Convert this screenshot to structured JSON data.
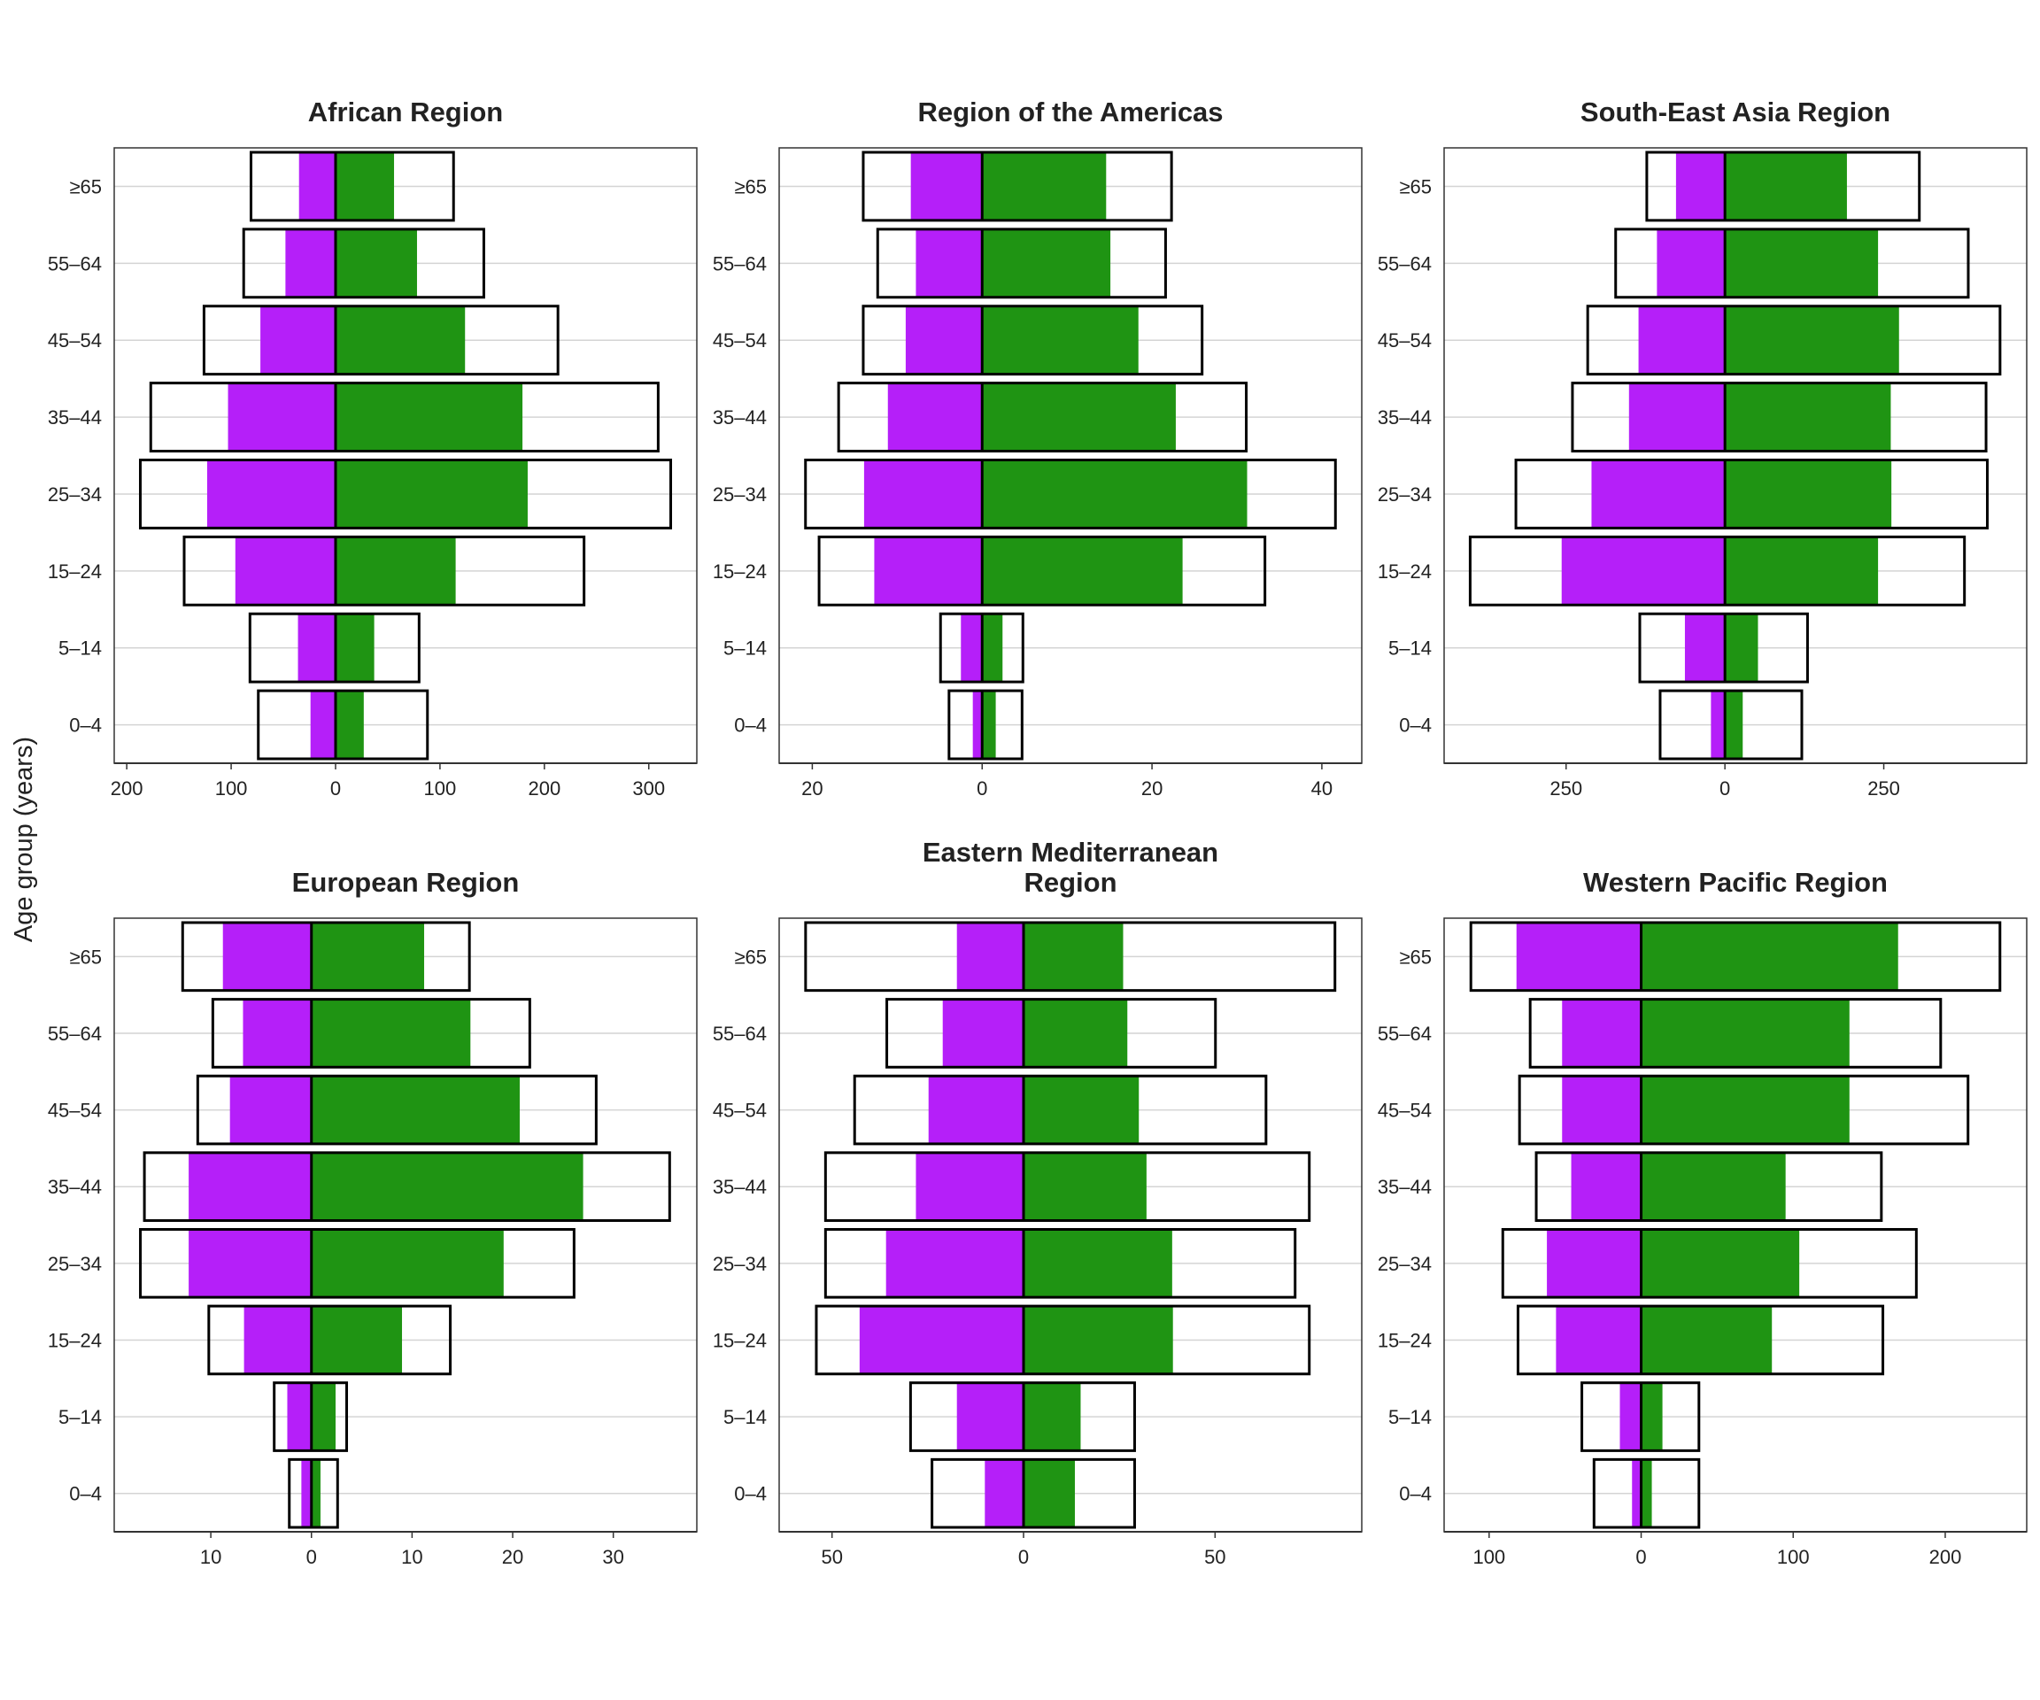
{
  "ylabel": "Age group (years)",
  "colors": {
    "left_bar": "#b51ff9",
    "right_bar": "#1f9413",
    "outline": "#000000",
    "grid": "#d4d4d4"
  },
  "chart_data": [
    {
      "type": "bar",
      "orientation": "horizontal-pyramid",
      "title": [
        "African Region"
      ],
      "categories": [
        "≥65",
        "55–64",
        "45–54",
        "35–44",
        "25–34",
        "15–24",
        "5–14",
        "0–4"
      ],
      "xlim": [
        -212,
        346
      ],
      "xticks": [
        -200,
        -100,
        0,
        100,
        200,
        300
      ],
      "xtick_labels": [
        "200",
        "100",
        "0",
        "100",
        "200",
        "300"
      ],
      "series": [
        {
          "side": "left",
          "style": "filled",
          "color": "#b51ff9",
          "values": [
            35,
            48,
            72,
            103,
            123,
            96,
            36,
            24
          ]
        },
        {
          "side": "right",
          "style": "filled",
          "color": "#1f9413",
          "values": [
            56,
            78,
            124,
            179,
            184,
            115,
            37,
            27
          ]
        },
        {
          "side": "left",
          "style": "outline",
          "values": [
            81,
            88,
            126,
            177,
            187,
            145,
            82,
            74
          ]
        },
        {
          "side": "right",
          "style": "outline",
          "values": [
            113,
            142,
            213,
            309,
            321,
            238,
            80,
            88
          ]
        }
      ],
      "grid": "horizontal"
    },
    {
      "type": "bar",
      "orientation": "horizontal-pyramid",
      "title": [
        "Region of the Americas"
      ],
      "categories": [
        "≥65",
        "55–64",
        "45–54",
        "35–44",
        "25–34",
        "15–24",
        "5–14",
        "0–4"
      ],
      "xlim": [
        -23.9,
        44.7
      ],
      "xticks": [
        -20,
        0,
        20,
        40
      ],
      "xtick_labels": [
        "20",
        "0",
        "20",
        "40"
      ],
      "series": [
        {
          "side": "left",
          "style": "filled",
          "color": "#b51ff9",
          "values": [
            8.4,
            7.8,
            9.0,
            11.1,
            13.9,
            12.7,
            2.5,
            1.1
          ]
        },
        {
          "side": "right",
          "style": "filled",
          "color": "#1f9413",
          "values": [
            14.6,
            15.1,
            18.4,
            22.8,
            31.2,
            23.6,
            2.4,
            1.6
          ]
        },
        {
          "side": "left",
          "style": "outline",
          "values": [
            14.0,
            12.3,
            14.0,
            16.9,
            20.8,
            19.2,
            4.9,
            3.9
          ]
        },
        {
          "side": "right",
          "style": "outline",
          "values": [
            22.3,
            21.6,
            25.9,
            31.1,
            41.6,
            33.3,
            4.8,
            4.7
          ]
        }
      ],
      "grid": "horizontal"
    },
    {
      "type": "bar",
      "orientation": "horizontal-pyramid",
      "title": [
        "South-East Asia Region"
      ],
      "categories": [
        "≥65",
        "55–64",
        "45–54",
        "35–44",
        "25–34",
        "15–24",
        "5–14",
        "0–4"
      ],
      "xlim": [
        -442,
        475
      ],
      "xticks": [
        -250,
        0,
        250
      ],
      "xtick_labels": [
        "250",
        "0",
        "250"
      ],
      "series": [
        {
          "side": "left",
          "style": "filled",
          "color": "#b51ff9",
          "values": [
            77,
            107,
            136,
            151,
            210,
            257,
            63,
            22
          ]
        },
        {
          "side": "right",
          "style": "filled",
          "color": "#1f9413",
          "values": [
            192,
            241,
            274,
            261,
            262,
            241,
            52,
            28
          ]
        },
        {
          "side": "left",
          "style": "outline",
          "values": [
            123,
            172,
            216,
            240,
            329,
            401,
            134,
            102
          ]
        },
        {
          "side": "right",
          "style": "outline",
          "values": [
            306,
            383,
            433,
            411,
            413,
            377,
            130,
            121
          ]
        }
      ],
      "grid": "horizontal"
    },
    {
      "type": "bar",
      "orientation": "horizontal-pyramid",
      "title": [
        "European Region"
      ],
      "categories": [
        "≥65",
        "55–64",
        "45–54",
        "35–44",
        "25–34",
        "15–24",
        "5–14",
        "0–4"
      ],
      "xlim": [
        -19.6,
        38.3
      ],
      "xticks": [
        -10,
        0,
        10,
        20,
        30
      ],
      "xtick_labels": [
        "10",
        "0",
        "10",
        "20",
        "30"
      ],
      "series": [
        {
          "side": "left",
          "style": "filled",
          "color": "#b51ff9",
          "values": [
            8.8,
            6.8,
            8.1,
            12.2,
            12.2,
            6.7,
            2.4,
            1.0
          ]
        },
        {
          "side": "right",
          "style": "filled",
          "color": "#1f9413",
          "values": [
            11.2,
            15.8,
            20.7,
            27.0,
            19.1,
            9.0,
            2.4,
            0.9
          ]
        },
        {
          "side": "left",
          "style": "outline",
          "values": [
            12.8,
            9.8,
            11.3,
            16.6,
            17.0,
            10.2,
            3.7,
            2.2
          ]
        },
        {
          "side": "right",
          "style": "outline",
          "values": [
            15.7,
            21.7,
            28.3,
            35.6,
            26.1,
            13.8,
            3.5,
            2.6
          ]
        }
      ],
      "grid": "horizontal"
    },
    {
      "type": "bar",
      "orientation": "horizontal-pyramid",
      "title": [
        "Eastern Mediterranean",
        "Region"
      ],
      "categories": [
        "≥65",
        "55–64",
        "45–54",
        "35–44",
        "25–34",
        "15–24",
        "5–14",
        "0–4"
      ],
      "xlim": [
        -63.8,
        88.3
      ],
      "xticks": [
        -50,
        0,
        50
      ],
      "xtick_labels": [
        "50",
        "0",
        "50"
      ],
      "series": [
        {
          "side": "left",
          "style": "filled",
          "color": "#b51ff9",
          "values": [
            17.4,
            21.1,
            24.8,
            28.1,
            35.9,
            42.8,
            17.4,
            10.1
          ]
        },
        {
          "side": "right",
          "style": "filled",
          "color": "#1f9413",
          "values": [
            26.0,
            27.1,
            30.1,
            32.1,
            38.8,
            39.0,
            14.9,
            13.4
          ]
        },
        {
          "side": "left",
          "style": "outline",
          "values": [
            56.9,
            35.7,
            44.1,
            51.7,
            51.7,
            54.1,
            29.5,
            23.9
          ]
        },
        {
          "side": "right",
          "style": "outline",
          "values": [
            81.3,
            50.1,
            63.3,
            74.6,
            70.9,
            74.6,
            29.0,
            29.0
          ]
        }
      ],
      "grid": "horizontal"
    },
    {
      "type": "bar",
      "orientation": "horizontal-pyramid",
      "title": [
        "Western Pacific Region"
      ],
      "categories": [
        "≥65",
        "55–64",
        "45–54",
        "35–44",
        "25–34",
        "15–24",
        "5–14",
        "0–4"
      ],
      "xlim": [
        -129.6,
        253.6
      ],
      "xticks": [
        -100,
        0,
        100,
        200
      ],
      "xtick_labels": [
        "100",
        "0",
        "100",
        "200"
      ],
      "series": [
        {
          "side": "left",
          "style": "filled",
          "color": "#b51ff9",
          "values": [
            82,
            52,
            52,
            46,
            62,
            56,
            14,
            6
          ]
        },
        {
          "side": "right",
          "style": "filled",
          "color": "#1f9413",
          "values": [
            169,
            137,
            137,
            95,
            104,
            86,
            14,
            7
          ]
        },
        {
          "side": "left",
          "style": "outline",
          "values": [
            112,
            73,
            80,
            69,
            91,
            81,
            39,
            31
          ]
        },
        {
          "side": "right",
          "style": "outline",
          "values": [
            236,
            197,
            215,
            158,
            181,
            159,
            38,
            38
          ]
        }
      ],
      "grid": "horizontal"
    }
  ]
}
